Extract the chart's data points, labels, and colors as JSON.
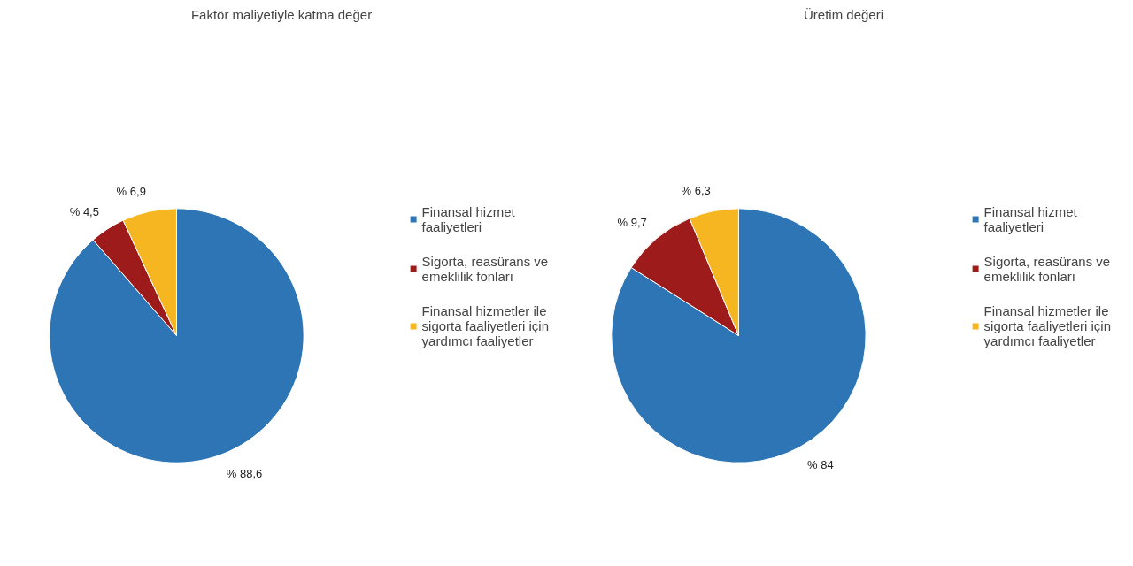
{
  "chart_data": [
    {
      "type": "pie",
      "title": "Faktör maliyetiyle katma değer",
      "categories": [
        "Finansal hizmet faaliyetleri",
        "Sigorta, reasürans ve emeklilik fonları",
        "Finansal hizmetler ile sigorta faaliyetleri için yardımcı faaliyetler"
      ],
      "values": [
        88.6,
        4.5,
        6.9
      ],
      "colors": [
        "#2e75b6",
        "#9e1b1b",
        "#f5b622"
      ],
      "value_labels": [
        "% 88,6",
        "% 4,5",
        "% 6,9"
      ],
      "legend": "right"
    },
    {
      "type": "pie",
      "title": "Üretim değeri",
      "categories": [
        "Finansal hizmet faaliyetleri",
        "Sigorta, reasürans ve emeklilik fonları",
        "Finansal hizmetler ile sigorta faaliyetleri için yardımcı faaliyetler"
      ],
      "values": [
        84,
        9.7,
        6.3
      ],
      "colors": [
        "#2e75b6",
        "#9e1b1b",
        "#f5b622"
      ],
      "value_labels": [
        "% 84",
        "% 9,7",
        "% 6,3"
      ],
      "legend": "right"
    }
  ]
}
